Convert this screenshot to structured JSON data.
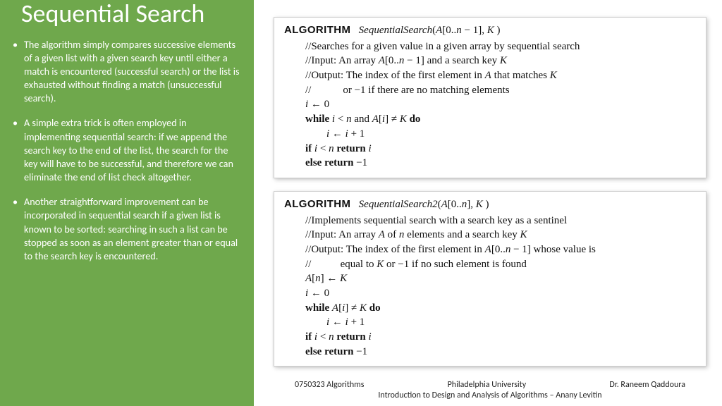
{
  "colors": {
    "sidebar_bg": "#6fa84c",
    "sidebar_text": "#ffffff",
    "box_border": "#cfcfcf",
    "box_shadow": "rgba(0,0,0,0.22)",
    "body_bg": "#ffffff",
    "text": "#111111"
  },
  "title": "Sequential Search",
  "bullets": [
    "The algorithm simply compares successive elements of a given list with a given search key until either a match is encountered (successful search) or the list is exhausted without finding a match (unsuccessful search).",
    "A simple extra trick is often employed in implementing sequential search: if we append the search key to the end of the list, the search for the key will have to be successful, and therefore we can eliminate the end of list check altogether.",
    "Another straightforward improvement can be incorporated in sequential search if a given list is known to be sorted: searching in such a list can be stopped as soon as an element greater than or equal to the search key is encountered."
  ],
  "algo1": {
    "label": "ALGORITHM",
    "name": "SequentialSearch",
    "sig_open": "(",
    "sig_arr": "A",
    "sig_range": "[0..",
    "sig_n": "n",
    "sig_minus": " − 1], ",
    "sig_k": "K",
    "sig_close": " )",
    "c1": "//Searches for a given value in a given array by sequential search",
    "c2a": "//Input: An array ",
    "c2b": "A",
    "c2c": "[0..",
    "c2d": "n",
    "c2e": " − 1] and a search key ",
    "c2f": "K",
    "c3a": "//Output: The index of the first element in ",
    "c3b": "A",
    "c3c": " that matches ",
    "c3d": "K",
    "c4": "//            or −1 if there are no matching elements",
    "l1a": "i",
    "l1b": " ← 0",
    "l2a": "while ",
    "l2b": "i",
    "l2c": " < ",
    "l2d": "n",
    "l2e": " and ",
    "l2f": "A",
    "l2g": "[",
    "l2h": "i",
    "l2i": "] ≠ ",
    "l2j": "K",
    "l2k": " do",
    "l3a": "i",
    "l3b": " ← ",
    "l3c": "i",
    "l3d": " + 1",
    "l4a": "if ",
    "l4b": "i",
    "l4c": " < ",
    "l4d": "n",
    "l4e": " return ",
    "l4f": "i",
    "l5a": "else return ",
    "l5b": "−1"
  },
  "algo2": {
    "label": "ALGORITHM",
    "name": "SequentialSearch2",
    "sig_open": "(",
    "sig_arr": "A",
    "sig_range": "[0..",
    "sig_n": "n",
    "sig_close_range": "], ",
    "sig_k": "K",
    "sig_close": " )",
    "c1": "//Implements sequential search with a search key as a sentinel",
    "c2a": "//Input: An array ",
    "c2b": "A",
    "c2c": " of ",
    "c2d": "n",
    "c2e": " elements and a search key ",
    "c2f": "K",
    "c3a": "//Output: The index of the first element in ",
    "c3b": "A",
    "c3c": "[0..",
    "c3d": "n",
    "c3e": " − 1] whose value is",
    "c4a": "//           equal to ",
    "c4b": "K",
    "c4c": " or −1 if no such element is found",
    "l1a": "A",
    "l1b": "[",
    "l1c": "n",
    "l1d": "] ← ",
    "l1e": "K",
    "l2a": "i",
    "l2b": " ← 0",
    "l3a": "while ",
    "l3b": "A",
    "l3c": "[",
    "l3d": "i",
    "l3e": "] ≠ ",
    "l3f": "K",
    "l3g": " do",
    "l4a": "i",
    "l4b": " ← ",
    "l4c": "i",
    "l4d": " + 1",
    "l5a": "if ",
    "l5b": "i",
    "l5c": " < ",
    "l5d": "n",
    "l5e": " return ",
    "l5f": "i",
    "l6a": "else return ",
    "l6b": "−1"
  },
  "footer": {
    "course": "0750323 Algorithms",
    "uni": "Philadelphia University",
    "instructor": "Dr. Raneem Qaddoura",
    "book": "Introduction to Design and Analysis of Algorithms – Anany Levitin"
  }
}
